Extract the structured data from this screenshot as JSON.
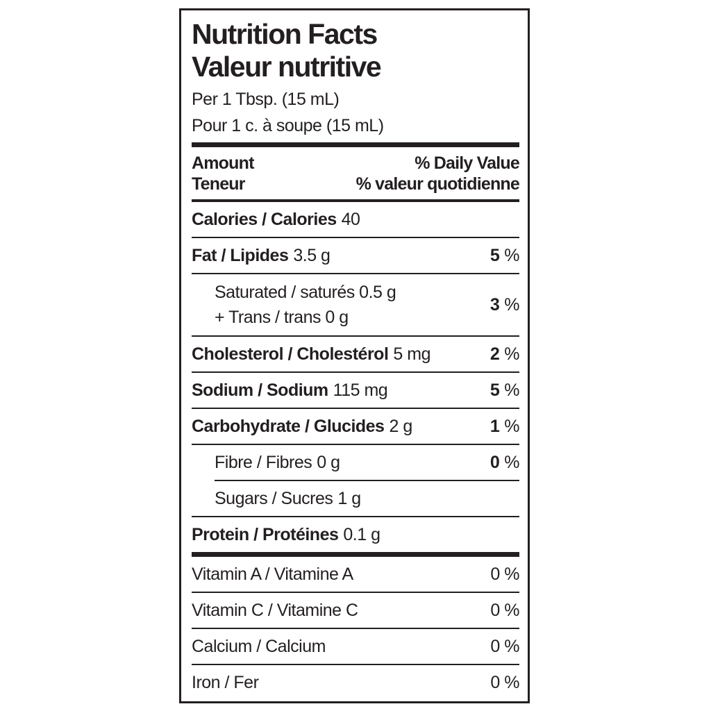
{
  "label": {
    "title_en": "Nutrition Facts",
    "title_fr": "Valeur nutritive",
    "serving_en": "Per 1 Tbsp. (15 mL)",
    "serving_fr": "Pour 1 c. à soupe (15 mL)",
    "header": {
      "amount_en": "Amount",
      "amount_fr": "Teneur",
      "dv_en": "% Daily Value",
      "dv_fr": "% valeur quotidienne"
    },
    "rows": {
      "calories": {
        "label": "Calories / Calories",
        "amount": "40"
      },
      "fat": {
        "label": "Fat / Lipides",
        "amount": "3.5 g",
        "dv_num": "5",
        "dv_unit": "%"
      },
      "saturated": {
        "line1": "Saturated / saturés 0.5 g",
        "line2": "+ Trans / trans 0 g",
        "dv_num": "3",
        "dv_unit": "%"
      },
      "cholesterol": {
        "label": "Cholesterol / Cholestérol",
        "amount": "5 mg",
        "dv_num": "2",
        "dv_unit": "%"
      },
      "sodium": {
        "label": "Sodium / Sodium",
        "amount": "115 mg",
        "dv_num": "5",
        "dv_unit": "%"
      },
      "carbohydrate": {
        "label": "Carbohydrate / Glucides",
        "amount": "2 g",
        "dv_num": "1",
        "dv_unit": "%"
      },
      "fibre": {
        "label": "Fibre / Fibres",
        "amount": "0 g",
        "dv_num": "0",
        "dv_unit": "%"
      },
      "sugars": {
        "label": "Sugars / Sucres",
        "amount": "1 g"
      },
      "protein": {
        "label": "Protein / Protéines",
        "amount": "0.1 g"
      },
      "vitamin_a": {
        "label": "Vitamin A / Vitamine A",
        "dv": "0 %"
      },
      "vitamin_c": {
        "label": "Vitamin C / Vitamine C",
        "dv": "0 %"
      },
      "calcium": {
        "label": "Calcium / Calcium",
        "dv": "0 %"
      },
      "iron": {
        "label": "Iron / Fer",
        "dv": "0 %"
      }
    },
    "colors": {
      "ink": "#231f20",
      "background": "#ffffff"
    }
  }
}
